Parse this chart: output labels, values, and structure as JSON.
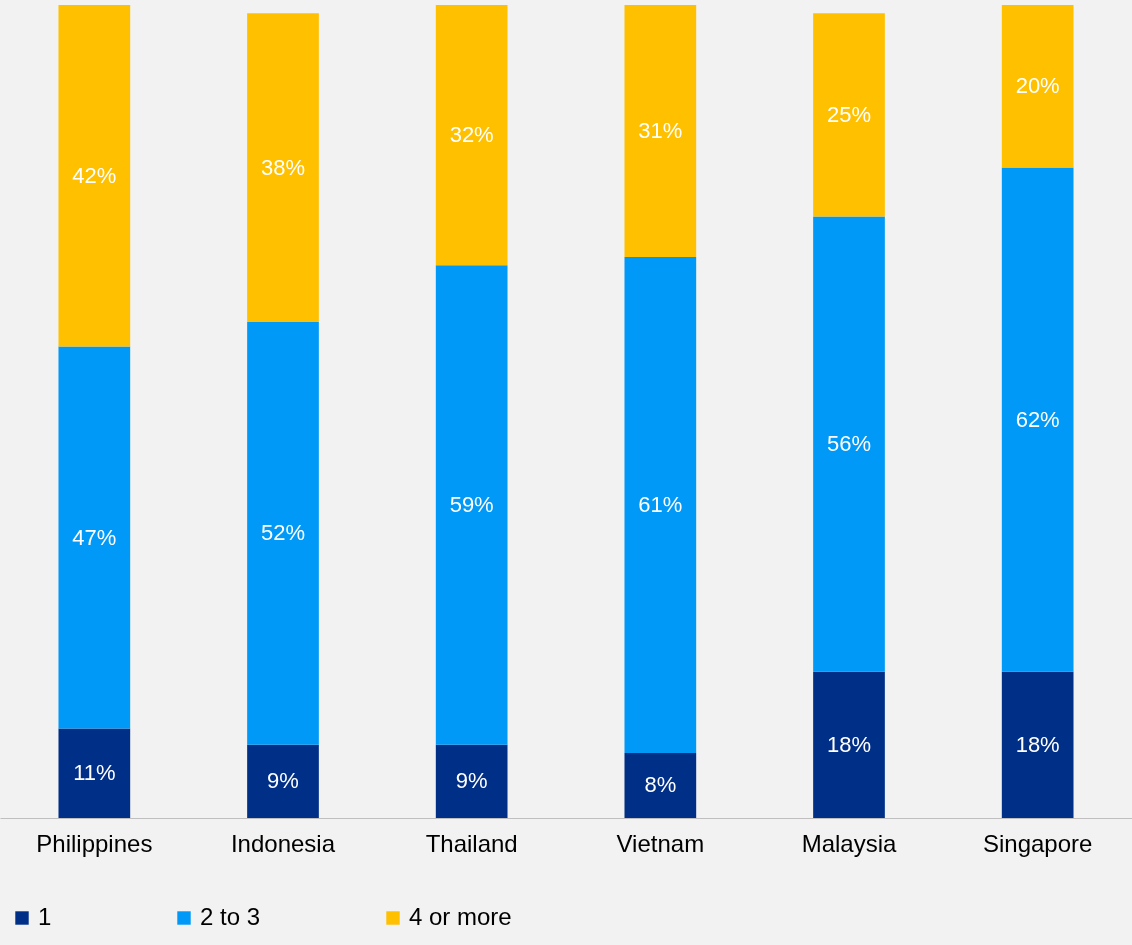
{
  "chart_data": {
    "type": "bar",
    "stacked": true,
    "categories": [
      "Philippines",
      "Indonesia",
      "Thailand",
      "Vietnam",
      "Malaysia",
      "Singapore"
    ],
    "series": [
      {
        "name": "1",
        "color": "#002f87",
        "values": [
          11,
          9,
          9,
          8,
          18,
          18
        ],
        "value_labels": [
          "11%",
          "9%",
          "9%",
          "8%",
          "18%",
          "18%"
        ]
      },
      {
        "name": "2 to 3",
        "color": "#0099f7",
        "values": [
          47,
          52,
          59,
          61,
          56,
          62
        ],
        "value_labels": [
          "47%",
          "52%",
          "59%",
          "61%",
          "56%",
          "62%"
        ]
      },
      {
        "name": "4 or more",
        "color": "#ffc000",
        "values": [
          42,
          38,
          32,
          31,
          25,
          20
        ],
        "value_labels": [
          "42%",
          "38%",
          "32%",
          "31%",
          "25%",
          "20%"
        ]
      }
    ],
    "ylim": [
      0,
      100
    ],
    "legend": "bottom",
    "grid": false
  }
}
